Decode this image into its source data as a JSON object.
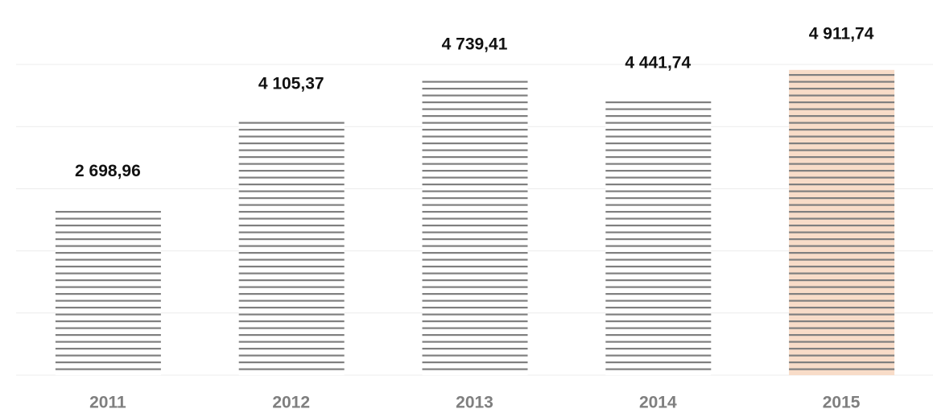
{
  "chart_data": {
    "type": "bar",
    "categories": [
      "2011",
      "2012",
      "2013",
      "2014",
      "2015"
    ],
    "values": [
      2698.96,
      4105.37,
      4739.41,
      4441.74,
      4911.74
    ],
    "value_labels": [
      "2 698,96",
      "4 105,37",
      "4 739,41",
      "4 441,74",
      "4 911,74"
    ],
    "colors": [
      "#ffffff",
      "#ffffff",
      "#ffffff",
      "#ffffff",
      "#f8dcc8"
    ],
    "hatch_color": "#7f7f7f",
    "ylim": [
      0,
      5000
    ],
    "yticks": [
      0,
      1000,
      2000,
      3000,
      4000,
      5000
    ],
    "grid": true
  }
}
